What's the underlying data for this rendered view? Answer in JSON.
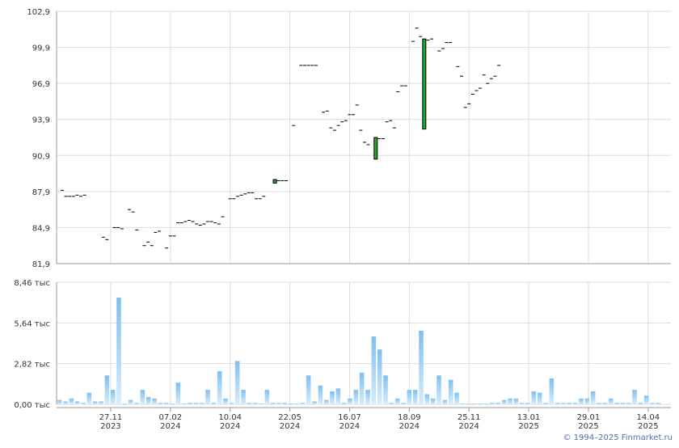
{
  "colors": {
    "grid": "#dddddd",
    "axis": "#999999",
    "candle_up": "#22aa22",
    "candle_border": "#000000",
    "volume_top": "#7fbfef",
    "volume_bottom": "#d8ecfb",
    "copyright": "#4a6fa5"
  },
  "copyright": "© 1994–2025 Finmarket.ru",
  "chart_data": [
    {
      "type": "candlestick",
      "title": "",
      "ylim": [
        81.9,
        102.9
      ],
      "y_ticks": [
        "81,9",
        "84,9",
        "87,9",
        "90,9",
        "93,9",
        "96,9",
        "99,9",
        "102,9"
      ],
      "x_ticks": [
        {
          "top": "27.11",
          "bottom": "2023",
          "pos": 14
        },
        {
          "top": "07.02",
          "bottom": "2024",
          "pos": 30
        },
        {
          "top": "10.04",
          "bottom": "2024",
          "pos": 46
        },
        {
          "top": "22.05",
          "bottom": "2024",
          "pos": 62
        },
        {
          "top": "16.07",
          "bottom": "2024",
          "pos": 78
        },
        {
          "top": "18.09",
          "bottom": "2024",
          "pos": 94
        },
        {
          "top": "25.11",
          "bottom": "2024",
          "pos": 110
        },
        {
          "top": "13.01",
          "bottom": "2025",
          "pos": 126
        },
        {
          "top": "29.01",
          "bottom": "2025",
          "pos": 142
        },
        {
          "top": "14.04",
          "bottom": "2025",
          "pos": 158
        }
      ],
      "x_count": 162,
      "prices": [
        {
          "i": 1,
          "v": 88.0
        },
        {
          "i": 2,
          "v": 87.5
        },
        {
          "i": 3,
          "v": 87.5
        },
        {
          "i": 4,
          "v": 87.5
        },
        {
          "i": 5,
          "v": 87.6
        },
        {
          "i": 6,
          "v": 87.5
        },
        {
          "i": 7,
          "v": 87.6
        },
        {
          "i": 12,
          "v": 84.1
        },
        {
          "i": 13,
          "v": 83.9
        },
        {
          "i": 15,
          "v": 84.9
        },
        {
          "i": 16,
          "v": 84.9
        },
        {
          "i": 17,
          "v": 84.8
        },
        {
          "i": 19,
          "v": 86.4
        },
        {
          "i": 20,
          "v": 86.2
        },
        {
          "i": 21,
          "v": 84.7
        },
        {
          "i": 23,
          "v": 83.4
        },
        {
          "i": 24,
          "v": 83.7
        },
        {
          "i": 25,
          "v": 83.4
        },
        {
          "i": 26,
          "v": 84.5
        },
        {
          "i": 27,
          "v": 84.6
        },
        {
          "i": 29,
          "v": 83.2
        },
        {
          "i": 30,
          "v": 84.2
        },
        {
          "i": 31,
          "v": 84.2
        },
        {
          "i": 32,
          "v": 85.3
        },
        {
          "i": 33,
          "v": 85.3
        },
        {
          "i": 34,
          "v": 85.4
        },
        {
          "i": 35,
          "v": 85.5
        },
        {
          "i": 36,
          "v": 85.4
        },
        {
          "i": 37,
          "v": 85.2
        },
        {
          "i": 38,
          "v": 85.1
        },
        {
          "i": 39,
          "v": 85.2
        },
        {
          "i": 40,
          "v": 85.4
        },
        {
          "i": 41,
          "v": 85.4
        },
        {
          "i": 42,
          "v": 85.3
        },
        {
          "i": 43,
          "v": 85.2
        },
        {
          "i": 44,
          "v": 85.8
        },
        {
          "i": 46,
          "v": 87.3
        },
        {
          "i": 47,
          "v": 87.3
        },
        {
          "i": 48,
          "v": 87.5
        },
        {
          "i": 49,
          "v": 87.6
        },
        {
          "i": 50,
          "v": 87.7
        },
        {
          "i": 51,
          "v": 87.8
        },
        {
          "i": 52,
          "v": 87.8
        },
        {
          "i": 53,
          "v": 87.3
        },
        {
          "i": 54,
          "v": 87.3
        },
        {
          "i": 55,
          "v": 87.5
        },
        {
          "i": 59,
          "v": 88.8
        },
        {
          "i": 60,
          "v": 88.8
        },
        {
          "i": 61,
          "v": 88.8
        },
        {
          "i": 63,
          "v": 93.4
        },
        {
          "i": 65,
          "v": 98.4
        },
        {
          "i": 66,
          "v": 98.4
        },
        {
          "i": 67,
          "v": 98.4
        },
        {
          "i": 68,
          "v": 98.4
        },
        {
          "i": 69,
          "v": 98.4
        },
        {
          "i": 71,
          "v": 94.5
        },
        {
          "i": 72,
          "v": 94.6
        },
        {
          "i": 73,
          "v": 93.2
        },
        {
          "i": 74,
          "v": 93.0
        },
        {
          "i": 75,
          "v": 93.4
        },
        {
          "i": 76,
          "v": 93.7
        },
        {
          "i": 77,
          "v": 93.8
        },
        {
          "i": 78,
          "v": 94.3
        },
        {
          "i": 79,
          "v": 94.3
        },
        {
          "i": 80,
          "v": 95.1
        },
        {
          "i": 81,
          "v": 93.0
        },
        {
          "i": 82,
          "v": 92.0
        },
        {
          "i": 83,
          "v": 91.8
        },
        {
          "i": 86,
          "v": 92.3
        },
        {
          "i": 87,
          "v": 92.3
        },
        {
          "i": 88,
          "v": 93.7
        },
        {
          "i": 89,
          "v": 93.8
        },
        {
          "i": 90,
          "v": 93.2
        },
        {
          "i": 91,
          "v": 96.2
        },
        {
          "i": 92,
          "v": 96.7
        },
        {
          "i": 93,
          "v": 96.7
        },
        {
          "i": 95,
          "v": 100.4
        },
        {
          "i": 96,
          "v": 101.5
        },
        {
          "i": 97,
          "v": 100.8
        },
        {
          "i": 99,
          "v": 100.5
        },
        {
          "i": 100,
          "v": 100.6
        },
        {
          "i": 102,
          "v": 99.6
        },
        {
          "i": 103,
          "v": 99.8
        },
        {
          "i": 104,
          "v": 100.3
        },
        {
          "i": 105,
          "v": 100.3
        },
        {
          "i": 107,
          "v": 98.3
        },
        {
          "i": 108,
          "v": 97.5
        },
        {
          "i": 109,
          "v": 94.9
        },
        {
          "i": 110,
          "v": 95.2
        },
        {
          "i": 111,
          "v": 96.0
        },
        {
          "i": 112,
          "v": 96.3
        },
        {
          "i": 113,
          "v": 96.5
        },
        {
          "i": 114,
          "v": 97.6
        },
        {
          "i": 115,
          "v": 96.9
        },
        {
          "i": 116,
          "v": 97.3
        },
        {
          "i": 117,
          "v": 97.5
        },
        {
          "i": 118,
          "v": 98.4
        }
      ],
      "candles": [
        {
          "i": 58,
          "open": 88.6,
          "close": 88.9
        },
        {
          "i": 85,
          "open": 90.6,
          "close": 92.4
        },
        {
          "i": 98,
          "open": 93.1,
          "close": 100.6
        }
      ]
    },
    {
      "type": "bar",
      "title": "",
      "ylabel": "тыс",
      "ylim": [
        0,
        8.46
      ],
      "y_ticks": [
        "0,00 тыс",
        "2,82 тыс",
        "5,64 тыс",
        "8,46 тыс"
      ],
      "values": [
        0.3,
        0.2,
        0.4,
        0.2,
        0.1,
        0.8,
        0.2,
        0.2,
        2.0,
        1.0,
        7.4,
        0.0,
        0.3,
        0.1,
        1.0,
        0.5,
        0.4,
        0.1,
        0.1,
        0.0,
        1.5,
        0.0,
        0.1,
        0.1,
        0.1,
        1.0,
        0.1,
        2.3,
        0.4,
        0.1,
        3.0,
        1.0,
        0.1,
        0.1,
        0.0,
        1.0,
        0.1,
        0.1,
        0.1,
        0.0,
        0.0,
        0.1,
        2.0,
        0.2,
        1.3,
        0.3,
        0.9,
        1.1,
        0.1,
        0.4,
        1.0,
        2.2,
        1.0,
        4.7,
        3.8,
        2.0,
        0.1,
        0.4,
        0.1,
        1.0,
        1.0,
        5.1,
        0.7,
        0.4,
        2.0,
        0.3,
        1.7,
        0.8,
        0.0,
        0.0,
        0.0,
        0.0,
        0.0,
        0.1,
        0.1,
        0.3,
        0.4,
        0.4,
        0.1,
        0.1,
        0.9,
        0.8,
        0.1,
        1.8,
        0.1,
        0.1,
        0.1,
        0.1,
        0.4,
        0.4,
        0.9,
        0.1,
        0.1,
        0.4,
        0.1,
        0.1,
        0.1,
        1.0,
        0.1,
        0.6,
        0.1,
        0.1
      ]
    }
  ]
}
